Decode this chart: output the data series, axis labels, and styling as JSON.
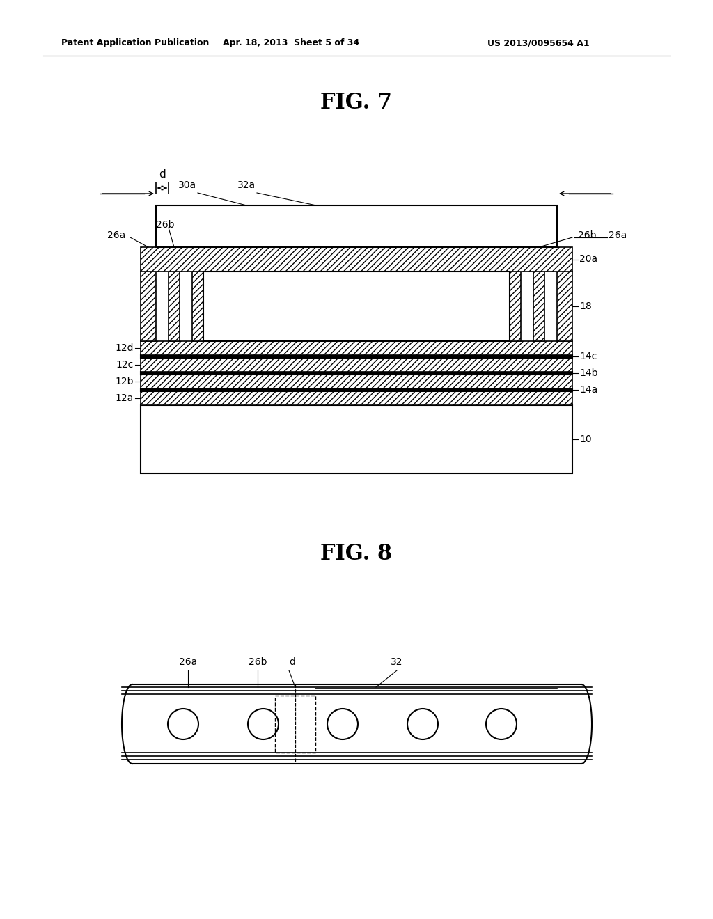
{
  "bg_color": "#ffffff",
  "line_color": "#000000",
  "fig7_title": "FIG. 7",
  "fig8_title": "FIG. 8",
  "header_left": "Patent Application Publication",
  "header_center": "Apr. 18, 2013  Sheet 5 of 34",
  "header_right": "US 2013/0095654 A1",
  "page_width": 10.24,
  "page_height": 13.2
}
